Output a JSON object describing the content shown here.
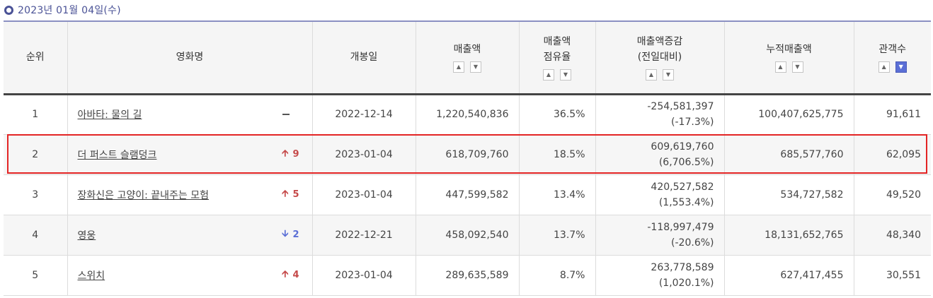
{
  "date_label": "2023년 01월 04일(수)",
  "headers": {
    "rank": "순위",
    "title": "영화명",
    "release": "개봉일",
    "sales": "매출액",
    "share_line1": "매출액",
    "share_line2": "점유율",
    "change_line1": "매출액증감",
    "change_line2": "(전일대비)",
    "cumulative": "누적매출액",
    "audience": "관객수"
  },
  "sort_controls": {
    "up_glyph": "▲",
    "down_glyph": "▼",
    "active_column": "audience"
  },
  "colors": {
    "accent": "#4a5296",
    "up": "#c54a4a",
    "down": "#5b6fd6",
    "highlight": "#e32424"
  },
  "rows": [
    {
      "rank": "1",
      "title": "아바타: 물의 길",
      "change_dir": "same",
      "change_glyph": "",
      "change_num": "",
      "release": "2022-12-14",
      "sales": "1,220,540,836",
      "share": "36.5%",
      "diff": "-254,581,397",
      "diff_pct": "(-17.3%)",
      "cumulative": "100,407,625,775",
      "audience": "91,611"
    },
    {
      "rank": "2",
      "title": "더 퍼스트 슬램덩크",
      "change_dir": "up",
      "change_glyph": "🡩",
      "change_num": "9",
      "release": "2023-01-04",
      "sales": "618,709,760",
      "share": "18.5%",
      "diff": "609,619,760",
      "diff_pct": "(6,706.5%)",
      "cumulative": "685,577,760",
      "audience": "62,095",
      "highlighted": true
    },
    {
      "rank": "3",
      "title": "장화신은 고양이: 끝내주는 모험",
      "change_dir": "up",
      "change_glyph": "🡩",
      "change_num": "5",
      "release": "2023-01-04",
      "sales": "447,599,582",
      "share": "13.4%",
      "diff": "420,527,582",
      "diff_pct": "(1,553.4%)",
      "cumulative": "534,727,582",
      "audience": "49,520"
    },
    {
      "rank": "4",
      "title": "영웅",
      "change_dir": "down",
      "change_glyph": "🡫",
      "change_num": "2",
      "release": "2022-12-21",
      "sales": "458,092,540",
      "share": "13.7%",
      "diff": "-118,997,479",
      "diff_pct": "(-20.6%)",
      "cumulative": "18,131,652,765",
      "audience": "48,340"
    },
    {
      "rank": "5",
      "title": "스위치",
      "change_dir": "up",
      "change_glyph": "🡩",
      "change_num": "4",
      "release": "2023-01-04",
      "sales": "289,635,589",
      "share": "8.7%",
      "diff": "263,778,589",
      "diff_pct": "(1,020.1%)",
      "cumulative": "627,417,455",
      "audience": "30,551"
    }
  ]
}
